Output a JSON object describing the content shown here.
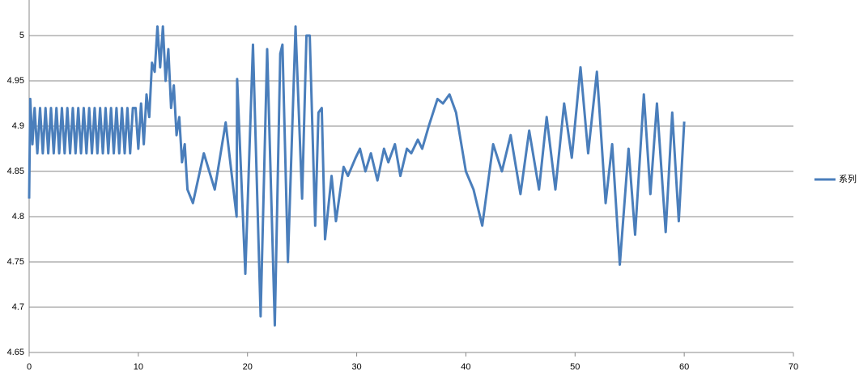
{
  "chart_data": {
    "type": "line",
    "x": [
      0,
      0.1,
      0.3,
      0.5,
      0.75,
      1,
      1.25,
      1.5,
      1.75,
      2,
      2.25,
      2.5,
      2.75,
      3,
      3.25,
      3.5,
      3.75,
      4,
      4.25,
      4.5,
      4.75,
      5,
      5.25,
      5.5,
      5.75,
      6,
      6.25,
      6.5,
      6.75,
      7,
      7.25,
      7.5,
      7.75,
      8,
      8.25,
      8.5,
      8.75,
      9,
      9.25,
      9.5,
      9.75,
      10,
      10.25,
      10.5,
      10.75,
      11,
      11.25,
      11.5,
      11.75,
      12,
      12.25,
      12.5,
      12.75,
      13,
      13.25,
      13.5,
      13.75,
      14,
      14.25,
      14.5,
      15,
      16,
      17,
      18,
      19,
      19.05,
      19.8,
      20.5,
      21.2,
      21.8,
      22.5,
      23,
      23.2,
      23.7,
      24.4,
      25,
      25.4,
      25.7,
      26.2,
      26.5,
      26.8,
      27.1,
      27.7,
      28.1,
      28.8,
      29.2,
      29.9,
      30.3,
      30.8,
      31.3,
      31.9,
      32.5,
      32.9,
      33.5,
      34,
      34.6,
      35,
      35.6,
      36,
      36.6,
      37.4,
      37.9,
      38.5,
      39.1,
      40,
      40.7,
      41.5,
      42.5,
      43.3,
      44.1,
      45,
      45.8,
      46.7,
      47.4,
      48.2,
      49,
      49.7,
      50.5,
      51.2,
      52,
      52.8,
      53.4,
      54.1,
      54.9,
      55.5,
      56.3,
      56.9,
      57.5,
      58.3,
      58.9,
      59.5,
      60
    ],
    "series": [
      {
        "name": "系列",
        "color": "#4a7ebb",
        "values": [
          4.82,
          4.93,
          4.88,
          4.92,
          4.87,
          4.92,
          4.87,
          4.92,
          4.87,
          4.92,
          4.87,
          4.92,
          4.87,
          4.92,
          4.87,
          4.92,
          4.87,
          4.92,
          4.87,
          4.92,
          4.87,
          4.92,
          4.87,
          4.92,
          4.87,
          4.92,
          4.87,
          4.92,
          4.87,
          4.92,
          4.87,
          4.92,
          4.87,
          4.92,
          4.87,
          4.92,
          4.87,
          4.92,
          4.87,
          4.92,
          4.92,
          4.875,
          4.925,
          4.88,
          4.935,
          4.91,
          4.97,
          4.96,
          5.01,
          4.965,
          5.01,
          4.95,
          4.985,
          4.92,
          4.945,
          4.89,
          4.91,
          4.86,
          4.88,
          4.83,
          4.815,
          4.87,
          4.83,
          4.904,
          4.8,
          4.952,
          4.737,
          4.99,
          4.69,
          4.985,
          4.68,
          4.98,
          4.99,
          4.75,
          5.01,
          4.82,
          5.0,
          5.0,
          4.79,
          4.915,
          4.92,
          4.775,
          4.845,
          4.795,
          4.855,
          4.845,
          4.865,
          4.875,
          4.85,
          4.87,
          4.84,
          4.875,
          4.86,
          4.88,
          4.845,
          4.875,
          4.87,
          4.885,
          4.875,
          4.9,
          4.93,
          4.925,
          4.935,
          4.915,
          4.85,
          4.83,
          4.79,
          4.88,
          4.85,
          4.89,
          4.825,
          4.895,
          4.83,
          4.91,
          4.83,
          4.925,
          4.865,
          4.965,
          4.87,
          4.96,
          4.815,
          4.88,
          4.747,
          4.875,
          4.78,
          4.935,
          4.825,
          4.925,
          4.783,
          4.915,
          4.795,
          4.905
        ]
      }
    ],
    "xlim": [
      0,
      70
    ],
    "xticks": [
      0,
      10,
      20,
      30,
      40,
      50,
      60,
      70
    ],
    "ylim": [
      4.65,
      5
    ],
    "yticks": [
      4.65,
      4.7,
      4.75,
      4.8,
      4.85,
      4.9,
      4.95,
      5
    ],
    "grid": true,
    "legend": "right"
  }
}
